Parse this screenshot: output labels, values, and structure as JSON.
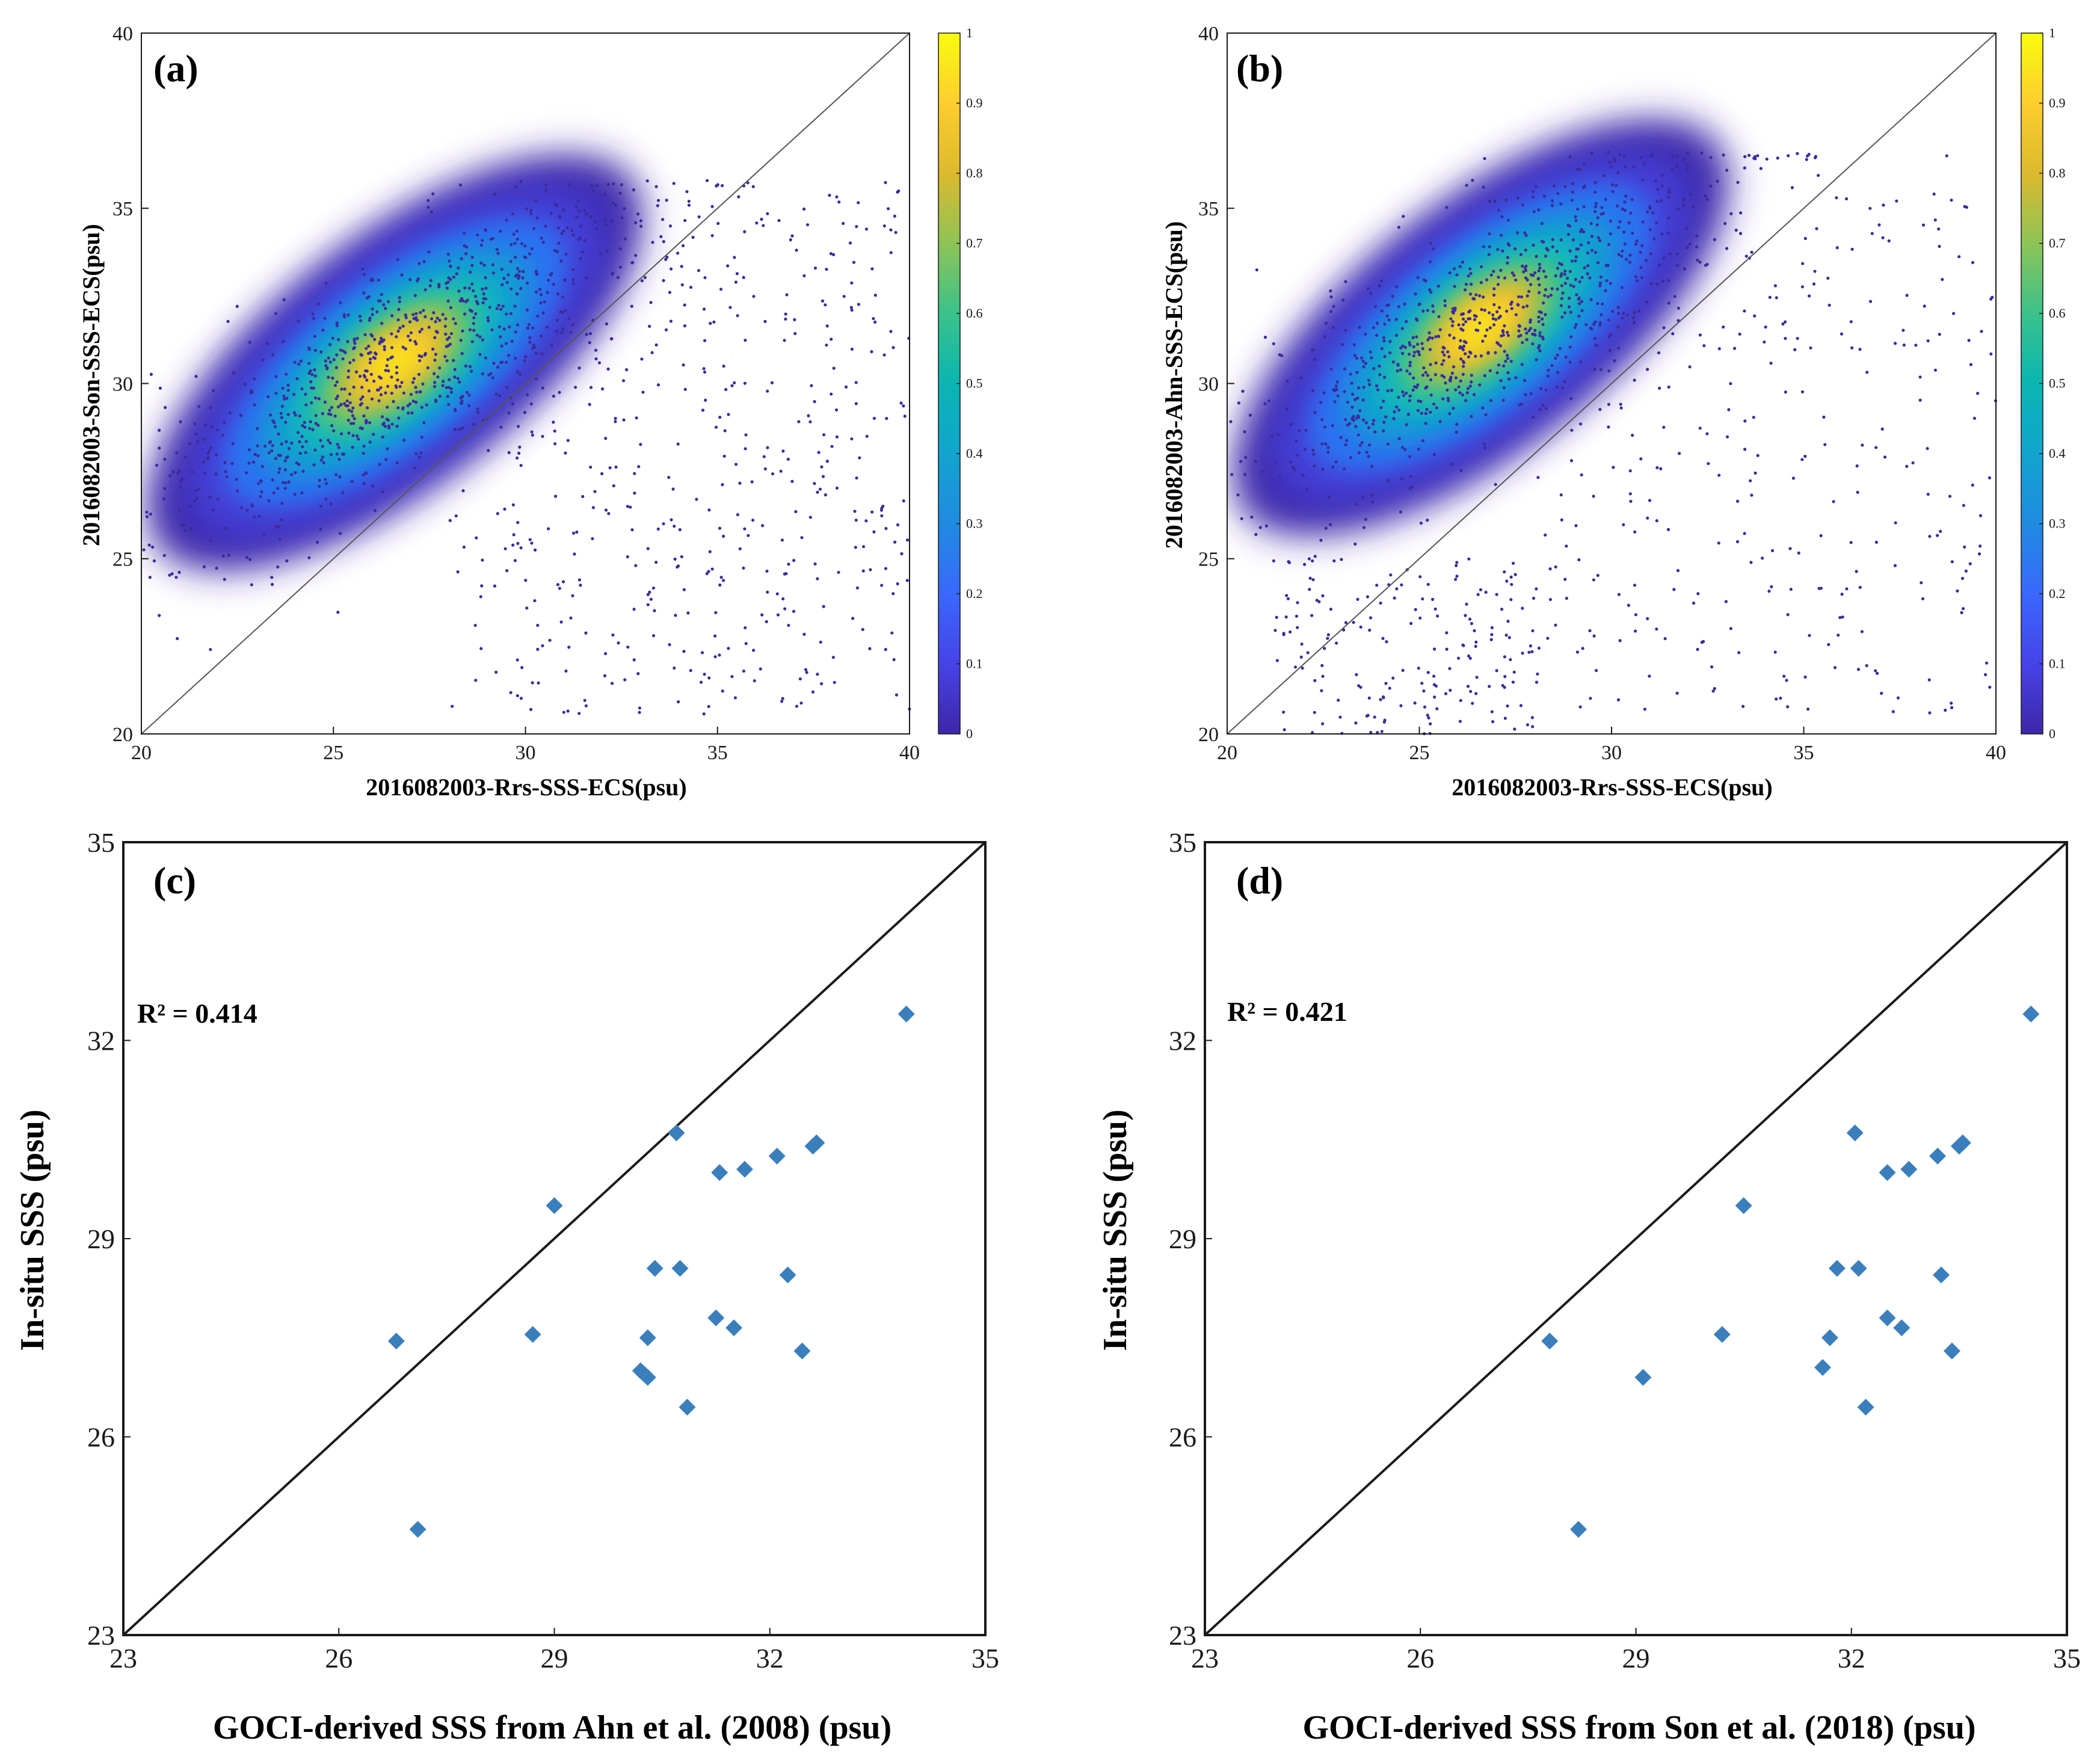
{
  "colors": {
    "density_low": "#3e26a8",
    "density_mid": "#1fb9c3",
    "density_high": "#f9fb0e",
    "marker": "#3a7fbc",
    "line": "#1a1a1a"
  },
  "chart_data": [
    {
      "id": "a",
      "type": "scatter",
      "panel_label": "(a)",
      "xlabel": "2016082003-Rrs-SSS-ECS(psu)",
      "ylabel": "2016082003-Son-SSS-ECS(psu)",
      "xlim": [
        20,
        40
      ],
      "ylim": [
        20,
        40
      ],
      "xticks": [
        "20",
        "25",
        "30",
        "35",
        "40"
      ],
      "yticks": [
        "20",
        "25",
        "30",
        "35",
        "40"
      ],
      "density": true,
      "density_center": [
        27.8,
        31.6
      ],
      "colorbar": {
        "range": [
          0,
          1
        ],
        "ticks": [
          "0",
          "0.1",
          "0.2",
          "0.3",
          "0.4",
          "0.5",
          "0.6",
          "0.7",
          "0.8",
          "0.9",
          "1"
        ]
      },
      "reference_line": "1:1"
    },
    {
      "id": "b",
      "type": "scatter",
      "panel_label": "(b)",
      "xlabel": "2016082003-Rrs-SSS-ECS(psu)",
      "ylabel": "2016082003-Ahn-SSS-ECS(psu)",
      "xlim": [
        20,
        40
      ],
      "ylim": [
        20,
        40
      ],
      "xticks": [
        "20",
        "25",
        "30",
        "35",
        "40"
      ],
      "yticks": [
        "20",
        "25",
        "30",
        "35",
        "40"
      ],
      "density": true,
      "density_center": [
        27.8,
        32.6
      ],
      "colorbar": {
        "range": [
          0,
          1
        ],
        "ticks": [
          "0",
          "0.1",
          "0.2",
          "0.3",
          "0.4",
          "0.5",
          "0.6",
          "0.7",
          "0.8",
          "0.9",
          "1"
        ]
      },
      "reference_line": "1:1"
    },
    {
      "id": "c",
      "type": "scatter",
      "panel_label": "(c)",
      "annotation": "R² = 0.414",
      "xlabel": "GOCI-derived SSS from Ahn et al. (2008) (psu)",
      "ylabel": "In-situ SSS (psu)",
      "xlim": [
        23,
        35
      ],
      "ylim": [
        23,
        35
      ],
      "xticks": [
        "23",
        "26",
        "29",
        "32",
        "35"
      ],
      "yticks": [
        "23",
        "26",
        "29",
        "32",
        "35"
      ],
      "reference_line": "1:1",
      "points": [
        [
          33.9,
          32.4
        ],
        [
          30.7,
          30.6
        ],
        [
          32.6,
          30.4
        ],
        [
          32.65,
          30.45
        ],
        [
          32.1,
          30.25
        ],
        [
          31.3,
          30.0
        ],
        [
          31.65,
          30.05
        ],
        [
          29.0,
          29.5
        ],
        [
          30.4,
          28.55
        ],
        [
          30.75,
          28.55
        ],
        [
          32.25,
          28.45
        ],
        [
          26.8,
          27.45
        ],
        [
          28.7,
          27.55
        ],
        [
          30.3,
          27.5
        ],
        [
          31.25,
          27.8
        ],
        [
          31.5,
          27.65
        ],
        [
          32.45,
          27.3
        ],
        [
          30.2,
          27.0
        ],
        [
          30.25,
          26.95
        ],
        [
          30.3,
          26.9
        ],
        [
          30.85,
          26.45
        ],
        [
          27.1,
          24.6
        ]
      ]
    },
    {
      "id": "d",
      "type": "scatter",
      "panel_label": "(d)",
      "annotation": "R² = 0.421",
      "xlabel": "GOCI-derived SSS from Son et al. (2018) (psu)",
      "ylabel": "In-situ SSS (psu)",
      "xlim": [
        23,
        35
      ],
      "ylim": [
        23,
        35
      ],
      "xticks": [
        "23",
        "26",
        "29",
        "32",
        "35"
      ],
      "yticks": [
        "23",
        "26",
        "29",
        "32",
        "35"
      ],
      "reference_line": "1:1",
      "points": [
        [
          34.5,
          32.4
        ],
        [
          32.05,
          30.6
        ],
        [
          33.5,
          30.4
        ],
        [
          33.55,
          30.45
        ],
        [
          33.2,
          30.25
        ],
        [
          32.5,
          30.0
        ],
        [
          32.8,
          30.05
        ],
        [
          30.5,
          29.5
        ],
        [
          31.8,
          28.55
        ],
        [
          32.1,
          28.55
        ],
        [
          33.25,
          28.45
        ],
        [
          27.8,
          27.45
        ],
        [
          30.2,
          27.55
        ],
        [
          31.7,
          27.5
        ],
        [
          32.5,
          27.8
        ],
        [
          32.7,
          27.65
        ],
        [
          33.4,
          27.3
        ],
        [
          31.6,
          27.05
        ],
        [
          29.1,
          26.9
        ],
        [
          32.2,
          26.45
        ],
        [
          28.2,
          24.6
        ]
      ]
    }
  ]
}
